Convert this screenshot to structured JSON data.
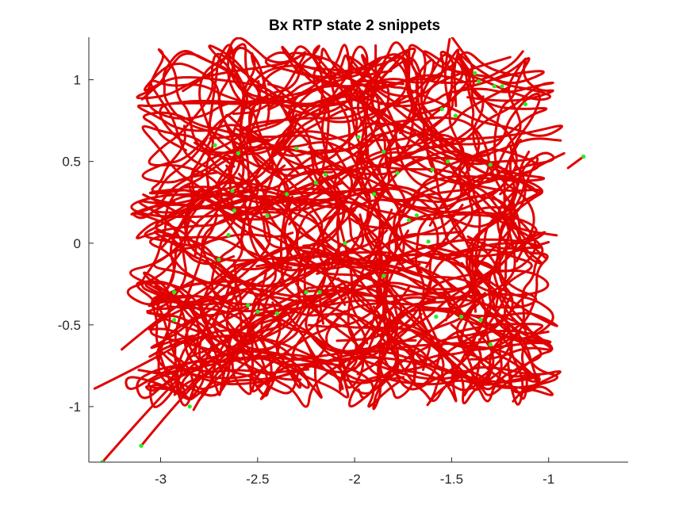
{
  "chart_data": {
    "type": "line",
    "title": "Bx  RTP state 2 snippets",
    "xlabel": "",
    "ylabel": "",
    "xlim": [
      -3.37,
      -0.59
    ],
    "ylim": [
      -1.34,
      1.26
    ],
    "x_ticks": [
      -3,
      -2.5,
      -2,
      -1.5,
      -1
    ],
    "x_tick_labels": [
      "-3",
      "-2.5",
      "-2",
      "-1.5",
      "-1"
    ],
    "y_ticks": [
      -1,
      -0.5,
      0,
      0.5,
      1
    ],
    "y_tick_labels": [
      "-1",
      "-0.5",
      "0",
      "0.5",
      "1"
    ],
    "grid": false,
    "legend": "none",
    "series_color": "#e00000",
    "marker_color": "#22ee22",
    "description_of_density": "many red trajectories densely filling region x in [-2.9,-1.1], y in [-0.85,1.05], with tails toward lower-left",
    "tail_trajectories": [
      {
        "points": [
          [
            -3.34,
            -0.89
          ],
          [
            -3.1,
            -0.75
          ],
          [
            -2.8,
            -0.55
          ],
          [
            -2.55,
            -0.4
          ]
        ]
      },
      {
        "points": [
          [
            -3.3,
            -1.34
          ],
          [
            -3.05,
            -1.0
          ],
          [
            -2.8,
            -0.7
          ],
          [
            -2.55,
            -0.5
          ],
          [
            -2.3,
            -0.35
          ]
        ]
      },
      {
        "points": [
          [
            -3.1,
            -1.24
          ],
          [
            -2.9,
            -0.95
          ],
          [
            -2.7,
            -0.72
          ],
          [
            -2.5,
            -0.5
          ]
        ]
      },
      {
        "points": [
          [
            -2.83,
            -1.02
          ],
          [
            -2.75,
            -0.85
          ],
          [
            -2.6,
            -0.65
          ],
          [
            -2.45,
            -0.5
          ]
        ]
      },
      {
        "points": [
          [
            -3.2,
            -0.65
          ],
          [
            -3.0,
            -0.45
          ],
          [
            -2.8,
            -0.3
          ],
          [
            -2.6,
            -0.15
          ]
        ]
      },
      {
        "points": [
          [
            -0.92,
            0.55
          ],
          [
            -1.1,
            0.45
          ],
          [
            -1.25,
            0.3
          ]
        ]
      },
      {
        "points": [
          [
            -0.9,
            0.46
          ],
          [
            -0.82,
            0.53
          ]
        ]
      }
    ],
    "snippet_start_points": [
      [
        -3.3,
        -1.34
      ],
      [
        -3.1,
        -1.24
      ],
      [
        -2.85,
        -1.0
      ],
      [
        -2.93,
        -0.3
      ],
      [
        -2.93,
        -0.47
      ],
      [
        -2.72,
        0.6
      ],
      [
        -2.6,
        0.55
      ],
      [
        -2.63,
        0.32
      ],
      [
        -2.62,
        0.2
      ],
      [
        -2.45,
        0.17
      ],
      [
        -2.35,
        0.3
      ],
      [
        -2.3,
        0.58
      ],
      [
        -2.2,
        0.37
      ],
      [
        -2.15,
        0.42
      ],
      [
        -1.98,
        0.65
      ],
      [
        -1.9,
        0.3
      ],
      [
        -1.85,
        0.56
      ],
      [
        -1.78,
        0.43
      ],
      [
        -1.72,
        0.14
      ],
      [
        -1.68,
        0.17
      ],
      [
        -1.6,
        0.45
      ],
      [
        -1.55,
        0.82
      ],
      [
        -1.52,
        0.5
      ],
      [
        -1.48,
        0.78
      ],
      [
        -1.38,
        1.04
      ],
      [
        -1.36,
        0.99
      ],
      [
        -1.28,
        0.96
      ],
      [
        -1.24,
        0.96
      ],
      [
        -1.12,
        0.85
      ],
      [
        -0.82,
        0.53
      ],
      [
        -1.62,
        0.01
      ],
      [
        -1.85,
        -0.2
      ],
      [
        -2.25,
        -0.3
      ],
      [
        -2.4,
        -0.43
      ],
      [
        -2.55,
        -0.38
      ],
      [
        -2.7,
        -0.1
      ],
      [
        -2.65,
        0.05
      ],
      [
        -1.45,
        -0.45
      ],
      [
        -1.35,
        -0.47
      ],
      [
        -1.3,
        -0.62
      ],
      [
        -2.05,
        0.0
      ],
      [
        -1.3,
        0.48
      ],
      [
        -2.5,
        -0.42
      ],
      [
        -2.18,
        -0.3
      ],
      [
        -1.58,
        -0.45
      ]
    ]
  }
}
